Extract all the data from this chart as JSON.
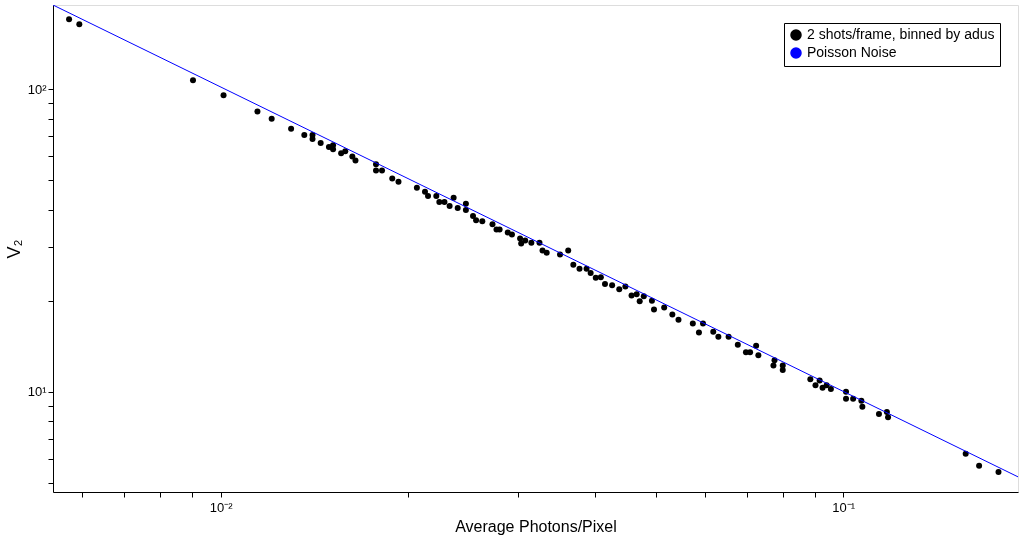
{
  "chart_data": {
    "type": "scatter",
    "xlabel": "Average Photons/Pixel",
    "ylabel": "V₂",
    "log": "xy",
    "grid": false,
    "legend": "top right",
    "xlim": [
      0.00538,
      0.191
    ],
    "ylim": [
      4.66,
      190
    ],
    "xticks": [
      {
        "value": 0.006,
        "label": null
      },
      {
        "value": 0.007,
        "label": null
      },
      {
        "value": 0.008,
        "label": null
      },
      {
        "value": 0.009,
        "label": null
      },
      {
        "value": 0.01,
        "label": "10⁻²"
      },
      {
        "value": 0.02,
        "label": null
      },
      {
        "value": 0.03,
        "label": null
      },
      {
        "value": 0.04,
        "label": null
      },
      {
        "value": 0.05,
        "label": null
      },
      {
        "value": 0.06,
        "label": null
      },
      {
        "value": 0.07,
        "label": null
      },
      {
        "value": 0.08,
        "label": null
      },
      {
        "value": 0.09,
        "label": null
      },
      {
        "value": 0.1,
        "label": "10⁻¹"
      }
    ],
    "yticks": [
      {
        "value": 5,
        "label": null
      },
      {
        "value": 6,
        "label": null
      },
      {
        "value": 7,
        "label": null
      },
      {
        "value": 8,
        "label": null
      },
      {
        "value": 9,
        "label": null
      },
      {
        "value": 10,
        "label": "10¹"
      },
      {
        "value": 20,
        "label": null
      },
      {
        "value": 30,
        "label": null
      },
      {
        "value": 40,
        "label": null
      },
      {
        "value": 50,
        "label": null
      },
      {
        "value": 60,
        "label": null
      },
      {
        "value": 70,
        "label": null
      },
      {
        "value": 80,
        "label": null
      },
      {
        "value": 90,
        "label": null
      },
      {
        "value": 100,
        "label": "10²"
      }
    ],
    "series": [
      {
        "name": "2 shots/frame, binned by adus",
        "color": "#000000",
        "marker": "circle",
        "x": [
          0.00571,
          0.00593,
          0.00903,
          0.01011,
          0.01146,
          0.01208,
          0.01298,
          0.01363,
          0.01405,
          0.01405,
          0.01448,
          0.01493,
          0.01516,
          0.01516,
          0.01562,
          0.01586,
          0.01628,
          0.01647,
          0.01777,
          0.01777,
          0.01817,
          0.01887,
          0.01931,
          0.02067,
          0.0213,
          0.02154,
          0.02221,
          0.02246,
          0.02289,
          0.02333,
          0.02368,
          0.02404,
          0.02478,
          0.02478,
          0.02544,
          0.02573,
          0.02633,
          0.02734,
          0.02775,
          0.02807,
          0.02893,
          0.02938,
          0.03028,
          0.0304,
          0.03086,
          0.03157,
          0.03253,
          0.0329,
          0.03341,
          0.0351,
          0.03618,
          0.03687,
          0.03772,
          0.03872,
          0.03931,
          0.04006,
          0.04082,
          0.04145,
          0.04256,
          0.0437,
          0.0447,
          0.04573,
          0.0466,
          0.04713,
          0.04785,
          0.04931,
          0.04969,
          0.0516,
          0.05318,
          0.0544,
          0.05736,
          0.05868,
          0.05957,
          0.06187,
          0.06305,
          0.06548,
          0.06775,
          0.06982,
          0.0709,
          0.0725,
          0.0731,
          0.0773,
          0.0776,
          0.08,
          0.08,
          0.0886,
          0.0903,
          0.0917,
          0.0927,
          0.0941,
          0.0956,
          0.1011,
          0.1011,
          0.1038,
          0.107,
          0.1074,
          0.1142,
          0.1176,
          0.1181,
          0.1574,
          0.1654,
          0.1777
        ],
        "values": [
          170.4,
          164.0,
          107.2,
          95.5,
          84.4,
          79.9,
          74.0,
          70.6,
          70.6,
          68.5,
          66.4,
          64.4,
          65.3,
          63.4,
          61.4,
          62.4,
          60.0,
          58.2,
          56.5,
          53.9,
          53.9,
          50.7,
          49.5,
          47.3,
          45.8,
          44.4,
          44.4,
          42.4,
          42.4,
          41.1,
          43.8,
          40.5,
          41.8,
          39.9,
          38.1,
          36.9,
          36.6,
          35.8,
          34.4,
          34.4,
          33.6,
          33.1,
          32.1,
          30.9,
          31.6,
          31.1,
          31.1,
          29.3,
          28.8,
          28.4,
          29.3,
          26.3,
          25.5,
          25.5,
          24.7,
          23.8,
          23.9,
          22.7,
          22.5,
          21.8,
          22.3,
          20.8,
          21.0,
          19.9,
          20.7,
          20.0,
          18.7,
          19.0,
          18.0,
          17.3,
          16.8,
          15.7,
          16.8,
          15.8,
          15.2,
          15.2,
          14.3,
          13.5,
          13.5,
          14.2,
          13.2,
          12.2,
          12.7,
          12.2,
          11.8,
          11.0,
          10.5,
          10.9,
          10.3,
          10.5,
          10.2,
          10.0,
          9.47,
          9.47,
          9.33,
          8.91,
          8.44,
          8.57,
          8.24,
          6.24,
          5.69,
          5.43
        ]
      },
      {
        "type": "line",
        "name": "Poisson Noise",
        "color": "#0000ff",
        "x": [
          0.00538,
          0.191
        ],
        "values": [
          190,
          5.23
        ]
      }
    ]
  }
}
